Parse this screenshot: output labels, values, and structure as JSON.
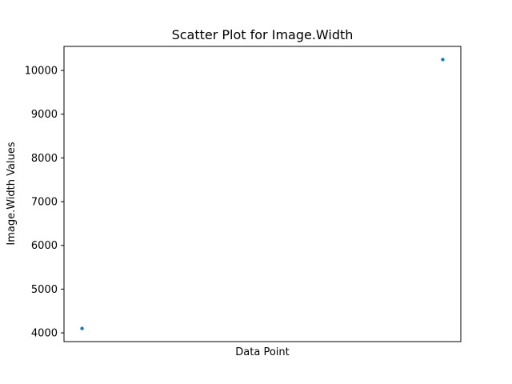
{
  "chart_data": {
    "type": "scatter",
    "title": "Scatter Plot for Image.Width",
    "xlabel": "Data Point",
    "ylabel": "Image.Width Values",
    "x_ticks_shown": false,
    "y_ticks": [
      4000,
      5000,
      6000,
      7000,
      8000,
      9000,
      10000
    ],
    "ylim": [
      3800,
      10550
    ],
    "xlim": [
      -0.05,
      1.05
    ],
    "grid": false,
    "series": [
      {
        "color": "#1f77b4",
        "points": [
          {
            "x": 0,
            "y": 4100
          },
          {
            "x": 1,
            "y": 10250
          }
        ]
      }
    ]
  }
}
